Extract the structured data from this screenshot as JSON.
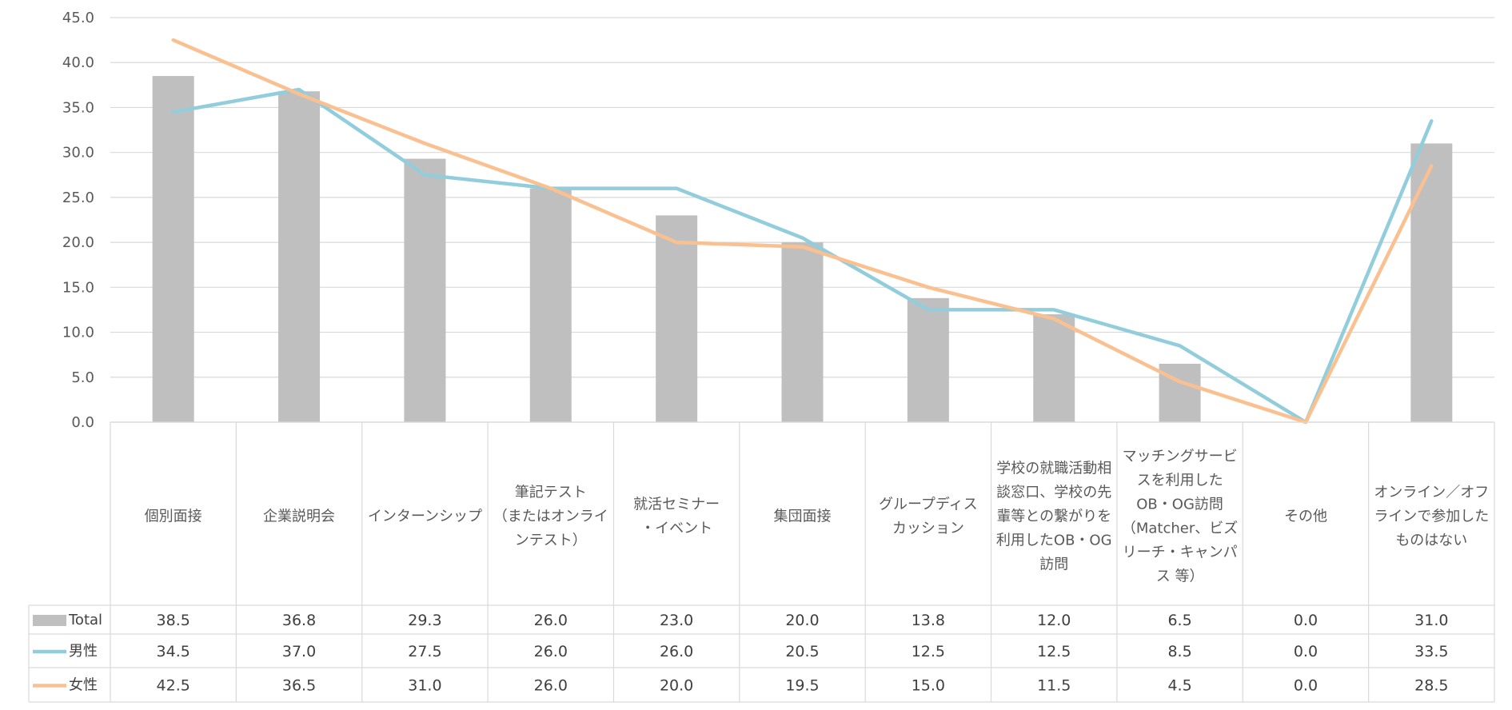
{
  "chart_data": {
    "type": "bar",
    "title": "",
    "xlabel": "",
    "ylabel": "",
    "ylim": [
      0,
      45
    ],
    "ytick_step": 5,
    "ytick_labels": [
      "0.0",
      "5.0",
      "10.0",
      "15.0",
      "20.0",
      "25.0",
      "30.0",
      "35.0",
      "40.0",
      "45.0"
    ],
    "grid": true,
    "categories": [
      [
        "個別面接"
      ],
      [
        "企業説明会"
      ],
      [
        "インターンシップ"
      ],
      [
        "筆記テスト",
        "（またはオンライ",
        "ンテスト）"
      ],
      [
        "就活セミナー",
        "・イベント"
      ],
      [
        "集団面接"
      ],
      [
        "グループディス",
        "カッション"
      ],
      [
        "学校の就職活動相",
        "談窓口、学校の先",
        "輩等との繋がりを",
        "利用したOB・OG",
        "訪問"
      ],
      [
        "マッチングサービ",
        "スを利用した",
        "OB・OG訪問",
        "（Matcher、ビズ",
        "リーチ・キャンパ",
        "ス 等）"
      ],
      [
        "その他"
      ],
      [
        "オンライン／オフ",
        "ラインで参加した",
        "ものはない"
      ]
    ],
    "series": [
      {
        "name": "Total",
        "kind": "bar",
        "color": "#bfbfbf",
        "values": [
          38.5,
          36.8,
          29.3,
          26.0,
          23.0,
          20.0,
          13.8,
          12.0,
          6.5,
          0.0,
          31.0
        ],
        "labels": [
          "38.5",
          "36.8",
          "29.3",
          "26.0",
          "23.0",
          "20.0",
          "13.8",
          "12.0",
          "6.5",
          "0.0",
          "31.0"
        ]
      },
      {
        "name": "男性",
        "kind": "line",
        "color": "#92cddc",
        "values": [
          34.5,
          37.0,
          27.5,
          26.0,
          26.0,
          20.5,
          12.5,
          12.5,
          8.5,
          0.0,
          33.5
        ],
        "labels": [
          "34.5",
          "37.0",
          "27.5",
          "26.0",
          "26.0",
          "20.5",
          "12.5",
          "12.5",
          "8.5",
          "0.0",
          "33.5"
        ]
      },
      {
        "name": "女性",
        "kind": "line",
        "color": "#fac090",
        "values": [
          42.5,
          36.5,
          31.0,
          26.0,
          20.0,
          19.5,
          15.0,
          11.5,
          4.5,
          0.0,
          28.5
        ],
        "labels": [
          "42.5",
          "36.5",
          "31.0",
          "26.0",
          "20.0",
          "19.5",
          "15.0",
          "11.5",
          "4.5",
          "0.0",
          "28.5"
        ]
      }
    ],
    "legend": "data-table-left"
  }
}
